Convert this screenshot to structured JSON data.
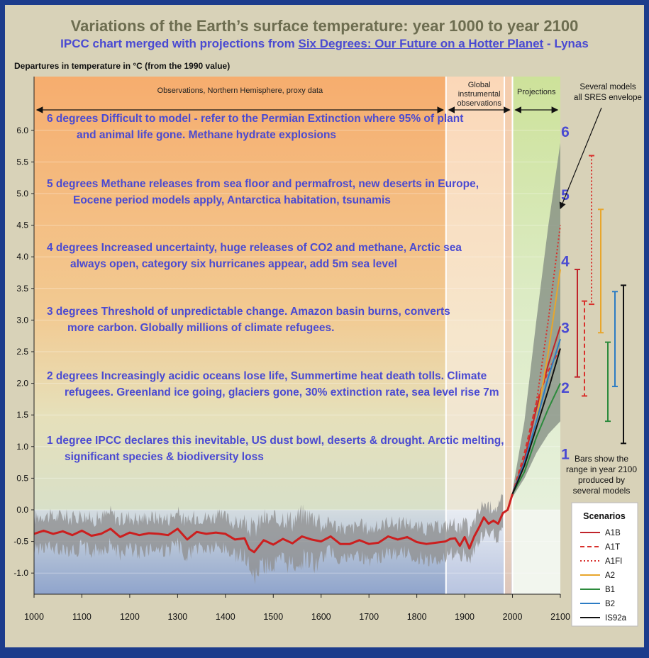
{
  "page": {
    "title": "Variations of the Earth’s surface temperature: year 1000 to year 2100",
    "subtitle_prefix": "IPCC chart merged with projections from ",
    "subtitle_book": "Six Degrees: Our Future on a Hotter Planet",
    "subtitle_suffix": " - Lynas"
  },
  "chart_data": {
    "type": "line",
    "title": "Variations of the Earth’s surface temperature: year 1000 to year 2100",
    "ylabel": "Departures in temperature in °C (from the 1990 value)",
    "xlabel": "",
    "xlim": [
      1000,
      2100
    ],
    "ylim": [
      -1.3,
      6.8
    ],
    "x_ticks": [
      1000,
      1100,
      1200,
      1300,
      1400,
      1500,
      1600,
      1700,
      1800,
      1900,
      2000,
      2100
    ],
    "y_ticks": [
      "-1.0",
      "-0.5",
      "0.0",
      "0.5",
      "1.0",
      "1.5",
      "2.0",
      "2.5",
      "3.0",
      "3.5",
      "4.0",
      "4.5",
      "5.0",
      "5.5",
      "6.0"
    ],
    "periods": [
      {
        "label_lines": [
          "Observations, Northern Hemisphere, proxy data"
        ],
        "start": 1000,
        "end": 1861
      },
      {
        "label_lines": [
          "Global",
          "instrumental",
          "observations"
        ],
        "start": 1861,
        "end": 2000
      },
      {
        "label_lines": [
          "Projections"
        ],
        "start": 2000,
        "end": 2100
      }
    ],
    "proxy_mean": {
      "x": [
        1000,
        1020,
        1040,
        1060,
        1080,
        1100,
        1120,
        1140,
        1160,
        1180,
        1200,
        1220,
        1240,
        1260,
        1280,
        1300,
        1320,
        1340,
        1360,
        1380,
        1400,
        1420,
        1440,
        1450,
        1460,
        1480,
        1500,
        1520,
        1540,
        1560,
        1580,
        1600,
        1620,
        1640,
        1660,
        1680,
        1700,
        1720,
        1740,
        1760,
        1780,
        1800,
        1820,
        1840,
        1860
      ],
      "y": [
        -0.38,
        -0.33,
        -0.38,
        -0.34,
        -0.4,
        -0.33,
        -0.41,
        -0.38,
        -0.3,
        -0.43,
        -0.36,
        -0.4,
        -0.37,
        -0.38,
        -0.4,
        -0.3,
        -0.47,
        -0.35,
        -0.38,
        -0.36,
        -0.38,
        -0.47,
        -0.45,
        -0.62,
        -0.67,
        -0.48,
        -0.55,
        -0.46,
        -0.53,
        -0.42,
        -0.47,
        -0.5,
        -0.42,
        -0.54,
        -0.54,
        -0.48,
        -0.54,
        -0.52,
        -0.42,
        -0.47,
        -0.43,
        -0.51,
        -0.54,
        -0.52,
        -0.5
      ]
    },
    "instrumental": {
      "x": [
        1860,
        1870,
        1880,
        1890,
        1900,
        1910,
        1920,
        1930,
        1940,
        1950,
        1960,
        1970,
        1980,
        1990,
        2000
      ],
      "y": [
        -0.5,
        -0.46,
        -0.45,
        -0.57,
        -0.43,
        -0.61,
        -0.42,
        -0.28,
        -0.12,
        -0.22,
        -0.17,
        -0.22,
        -0.05,
        0.0,
        0.25
      ]
    },
    "projection_envelope": {
      "x": [
        2000,
        2025,
        2050,
        2075,
        2100
      ],
      "low": [
        0.2,
        0.5,
        0.9,
        1.2,
        1.4
      ],
      "high": [
        0.3,
        1.4,
        3.0,
        4.5,
        5.8
      ]
    },
    "series": [
      {
        "name": "A1B",
        "color": "#c0242a",
        "dash": "solid",
        "x": [
          2000,
          2025,
          2050,
          2075,
          2100
        ],
        "y": [
          0.25,
          0.8,
          1.6,
          2.3,
          2.9
        ]
      },
      {
        "name": "A1T",
        "color": "#d8302c",
        "dash": "dashed",
        "x": [
          2000,
          2025,
          2050,
          2075,
          2100
        ],
        "y": [
          0.25,
          0.9,
          1.7,
          2.2,
          2.55
        ]
      },
      {
        "name": "A1FI",
        "color": "#d8302c",
        "dash": "dotted",
        "x": [
          2000,
          2025,
          2050,
          2075,
          2100
        ],
        "y": [
          0.25,
          0.8,
          1.7,
          3.0,
          4.5
        ]
      },
      {
        "name": "A2",
        "color": "#e8a62c",
        "dash": "solid",
        "x": [
          2000,
          2025,
          2050,
          2075,
          2100
        ],
        "y": [
          0.25,
          0.7,
          1.4,
          2.5,
          3.8
        ]
      },
      {
        "name": "B1",
        "color": "#2c8a3c",
        "dash": "solid",
        "x": [
          2000,
          2025,
          2050,
          2075,
          2100
        ],
        "y": [
          0.25,
          0.6,
          1.15,
          1.6,
          2.0
        ]
      },
      {
        "name": "B2",
        "color": "#2c7cc4",
        "dash": "solid",
        "x": [
          2000,
          2025,
          2050,
          2075,
          2100
        ],
        "y": [
          0.25,
          0.75,
          1.4,
          2.1,
          2.7
        ]
      },
      {
        "name": "IS92a",
        "color": "#111111",
        "dash": "solid",
        "x": [
          2000,
          2025,
          2050,
          2075,
          2100
        ],
        "y": [
          0.25,
          0.7,
          1.3,
          1.9,
          2.55
        ]
      }
    ],
    "range_bars_2100": [
      {
        "name": "A1B",
        "low": 2.1,
        "high": 3.8
      },
      {
        "name": "A1T",
        "low": 1.8,
        "high": 3.3
      },
      {
        "name": "A1FI",
        "low": 3.25,
        "high": 5.6
      },
      {
        "name": "A2",
        "low": 2.8,
        "high": 4.75
      },
      {
        "name": "B1",
        "low": 1.4,
        "high": 2.65
      },
      {
        "name": "B2",
        "low": 1.95,
        "high": 3.45
      },
      {
        "name": "IS92a",
        "low": 1.05,
        "high": 3.55
      }
    ],
    "degree_markers": [
      {
        "label": "1",
        "y": 0.9
      },
      {
        "label": "2",
        "y": 1.95
      },
      {
        "label": "3",
        "y": 2.9
      },
      {
        "label": "4",
        "y": 3.95
      },
      {
        "label": "5",
        "y": 5.0
      },
      {
        "label": "6",
        "y": 6.0
      }
    ],
    "degree_annotations": [
      {
        "lines": [
          "6 degrees  Difficult to model - refer to the Permian Extinction where 95%  of plant",
          "and animal life gone.  Methane hydrate explosions"
        ]
      },
      {
        "lines": [
          "5 degrees  Methane releases from sea floor and permafrost, new deserts in  Europe,",
          "Eocene period models apply, Antarctica habitation, tsunamis"
        ]
      },
      {
        "lines": [
          "4 degrees   Increased uncertainty, huge releases of CO2 and methane,  Arctic sea",
          "always open, category six hurricanes appear, add 5m sea level"
        ]
      },
      {
        "lines": [
          "3 degrees  Threshold of unpredictable change.  Amazon basin burns,  converts",
          "more carbon.  Globally millions of climate refugees."
        ]
      },
      {
        "lines": [
          "2 degrees   Increasingly acidic oceans lose life,  Summertime heat death  tolls.  Climate",
          "refugees. Greenland ice going, glaciers gone,  30%  extinction rate, sea level rise 7m"
        ]
      },
      {
        "lines": [
          "1 degree   IPCC declares this inevitable, US dust bowl, deserts & drought.   Arctic melting,",
          "significant species & biodiversity loss"
        ]
      }
    ],
    "side_notes": {
      "models_note": [
        "Several models",
        "all SRES envelope"
      ],
      "bars_note": [
        "Bars show the",
        "range in year 2100",
        "produced by",
        "several models"
      ]
    },
    "legend": {
      "title": "Scenarios",
      "position": "bottom-right"
    }
  },
  "colors": {
    "background": "#1c3c8c",
    "annotation_text": "#4a4ad2",
    "mean_line": "#cc1f1f",
    "proxy_band": "#8f8f8f",
    "title_text": "#6d6d50"
  }
}
